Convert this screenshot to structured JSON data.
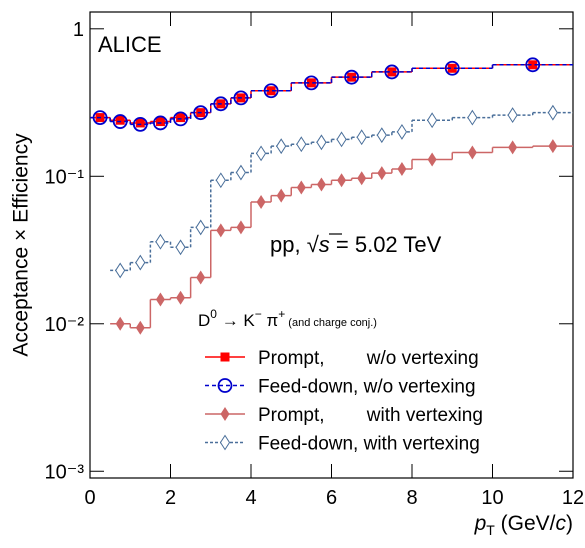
{
  "chart_data": {
    "type": "step",
    "y_label": "Acceptance × Efficiency",
    "x_label": [
      "p",
      "T",
      " (GeV/",
      "c",
      ")"
    ],
    "experiment_label": "ALICE",
    "system_label": [
      "pp, ",
      "√",
      "s",
      " = 5.02 TeV"
    ],
    "decay_label": [
      "D",
      "0",
      " → K",
      "−",
      " π",
      "+",
      " (and charge conj.)"
    ],
    "xlim": [
      0,
      12
    ],
    "xticks": [
      0,
      2,
      4,
      6,
      8,
      10,
      12
    ],
    "ylim": [
      0.0009,
      1.3
    ],
    "log_y": true,
    "yticks": [
      {
        "value": 0.001,
        "label": "10⁻³"
      },
      {
        "value": 0.01,
        "label": "10⁻²"
      },
      {
        "value": 0.1,
        "label": "10⁻¹"
      },
      1
    ],
    "series": [
      {
        "name": "Prompt,        w/o vertexing",
        "color": "#ff0000",
        "marker": "square",
        "dash": "none",
        "bins": [
          0,
          0.5,
          1,
          1.5,
          2,
          2.5,
          3,
          3.5,
          4,
          5,
          6,
          7,
          8,
          10,
          12
        ],
        "values": [
          0.25,
          0.24,
          0.23,
          0.235,
          0.25,
          0.27,
          0.31,
          0.34,
          0.38,
          0.43,
          0.47,
          0.51,
          0.54,
          0.57
        ]
      },
      {
        "name": "Feed-down, w/o vertexing",
        "color": "#0000cc",
        "marker": "circle-open",
        "dash": "4 3",
        "bins": [
          0,
          0.5,
          1,
          1.5,
          2,
          2.5,
          3,
          3.5,
          4,
          5,
          6,
          7,
          8,
          10,
          12
        ],
        "values": [
          0.25,
          0.235,
          0.225,
          0.23,
          0.245,
          0.27,
          0.31,
          0.34,
          0.38,
          0.43,
          0.47,
          0.51,
          0.54,
          0.57
        ]
      },
      {
        "name": "Prompt,        with vertexing",
        "color": "#cc6666",
        "marker": "diamond",
        "dash": "none",
        "bins": [
          0.5,
          1,
          1.5,
          2,
          2.5,
          3,
          3.5,
          4,
          4.5,
          5,
          5.5,
          6,
          6.5,
          7,
          7.5,
          8,
          9,
          10,
          11,
          12
        ],
        "values": [
          0.01,
          0.0094,
          0.0146,
          0.015,
          0.0206,
          0.043,
          0.045,
          0.067,
          0.074,
          0.084,
          0.088,
          0.094,
          0.097,
          0.105,
          0.112,
          0.13,
          0.145,
          0.157,
          0.16
        ]
      },
      {
        "name": "Feed-down, with vertexing",
        "color": "#4a6f9a",
        "marker": "diamond-open",
        "dash": "3 2",
        "bins": [
          0.5,
          1,
          1.5,
          2,
          2.5,
          3,
          3.5,
          4,
          4.5,
          5,
          5.5,
          6,
          6.5,
          7,
          7.5,
          8,
          9,
          10,
          11,
          12
        ],
        "values": [
          0.023,
          0.026,
          0.036,
          0.033,
          0.045,
          0.094,
          0.106,
          0.143,
          0.16,
          0.165,
          0.17,
          0.178,
          0.184,
          0.19,
          0.2,
          0.24,
          0.25,
          0.26,
          0.27
        ]
      }
    ]
  }
}
